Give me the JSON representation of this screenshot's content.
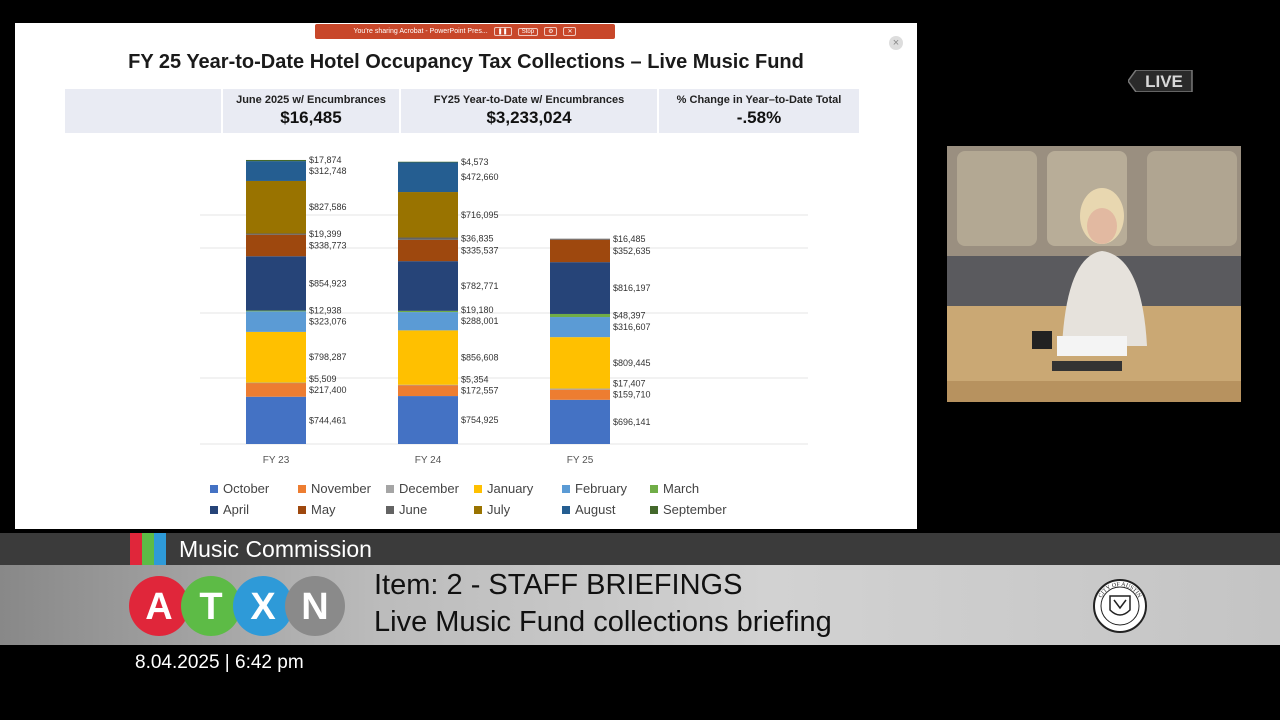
{
  "share_bar": {
    "text": "You're sharing Acrobat - PowerPoint Pres...",
    "stop_label": "Stop"
  },
  "slide": {
    "title": "FY 25 Year-to-Date Hotel Occupancy Tax Collections – Live Music Fund",
    "summary": [
      {
        "label": "June 2025 w/ Encumbrances",
        "value": "$16,485"
      },
      {
        "label": "FY25 Year-to-Date w/ Encumbrances",
        "value": "$3,233,024"
      },
      {
        "label": "% Change in Year–to-Date Total",
        "value": "-.58%"
      }
    ]
  },
  "chart_data": {
    "type": "bar",
    "stacked": true,
    "categories": [
      "FY 23",
      "FY 24",
      "FY 25"
    ],
    "series": [
      {
        "name": "October",
        "color": "#4472c4",
        "values": [
          744461,
          754925,
          696141
        ],
        "labels": [
          "$744,461",
          "$754,925",
          "$696,141"
        ]
      },
      {
        "name": "November",
        "color": "#ed7d31",
        "values": [
          217400,
          172557,
          159710
        ],
        "labels": [
          "$217,400",
          "$172,557",
          "$159,710"
        ]
      },
      {
        "name": "December",
        "color": "#a5a5a5",
        "values": [
          5509,
          5354,
          17407
        ],
        "labels": [
          "$5,509",
          "$5,354",
          "$17,407"
        ]
      },
      {
        "name": "January",
        "color": "#ffc000",
        "values": [
          798287,
          856608,
          809445
        ],
        "labels": [
          "$798,287",
          "$856,608",
          "$809,445"
        ]
      },
      {
        "name": "February",
        "color": "#5b9bd5",
        "values": [
          323076,
          288001,
          316607
        ],
        "labels": [
          "$323,076",
          "$288,001",
          "$316,607"
        ]
      },
      {
        "name": "March",
        "color": "#70ad47",
        "values": [
          12938,
          19180,
          48397
        ],
        "labels": [
          "$12,938",
          "$19,180",
          "$48,397"
        ]
      },
      {
        "name": "April",
        "color": "#264478",
        "values": [
          854923,
          782771,
          816197
        ],
        "labels": [
          "$854,923",
          "$782,771",
          "$816,197"
        ]
      },
      {
        "name": "May",
        "color": "#9e480e",
        "values": [
          338773,
          335537,
          352635
        ],
        "labels": [
          "$338,773",
          "$335,537",
          "$352,635"
        ]
      },
      {
        "name": "June",
        "color": "#636363",
        "values": [
          19399,
          36835,
          16485
        ],
        "labels": [
          "$19,399",
          "$36,835",
          "$16,485"
        ]
      },
      {
        "name": "July",
        "color": "#997300",
        "values": [
          827586,
          716095,
          0
        ],
        "labels": [
          "$827,586",
          "$716,095",
          ""
        ]
      },
      {
        "name": "August",
        "color": "#255e91",
        "values": [
          312748,
          472660,
          0
        ],
        "labels": [
          "$312,748",
          "$472,660",
          ""
        ]
      },
      {
        "name": "September",
        "color": "#43682b",
        "values": [
          17874,
          4573,
          0
        ],
        "labels": [
          "$17,874",
          "$4,573",
          ""
        ]
      }
    ],
    "legend_position": "bottom",
    "grid": true
  },
  "overlay": {
    "live_label": "LIVE",
    "commission": "Music Commission",
    "logo_letters": [
      "A",
      "T",
      "X",
      "N"
    ],
    "item_title": "Item: 2 - STAFF BRIEFINGS",
    "item_subtitle": "Live Music Fund collections briefing",
    "seal_text": "CITY OF AUSTIN",
    "datetime": "8.04.2025 | 6:42 pm",
    "colors": {
      "logo_red": "#e0263a",
      "logo_green": "#5dbb46",
      "logo_blue": "#2e9ad8",
      "logo_gray": "#8a8a8a"
    }
  }
}
